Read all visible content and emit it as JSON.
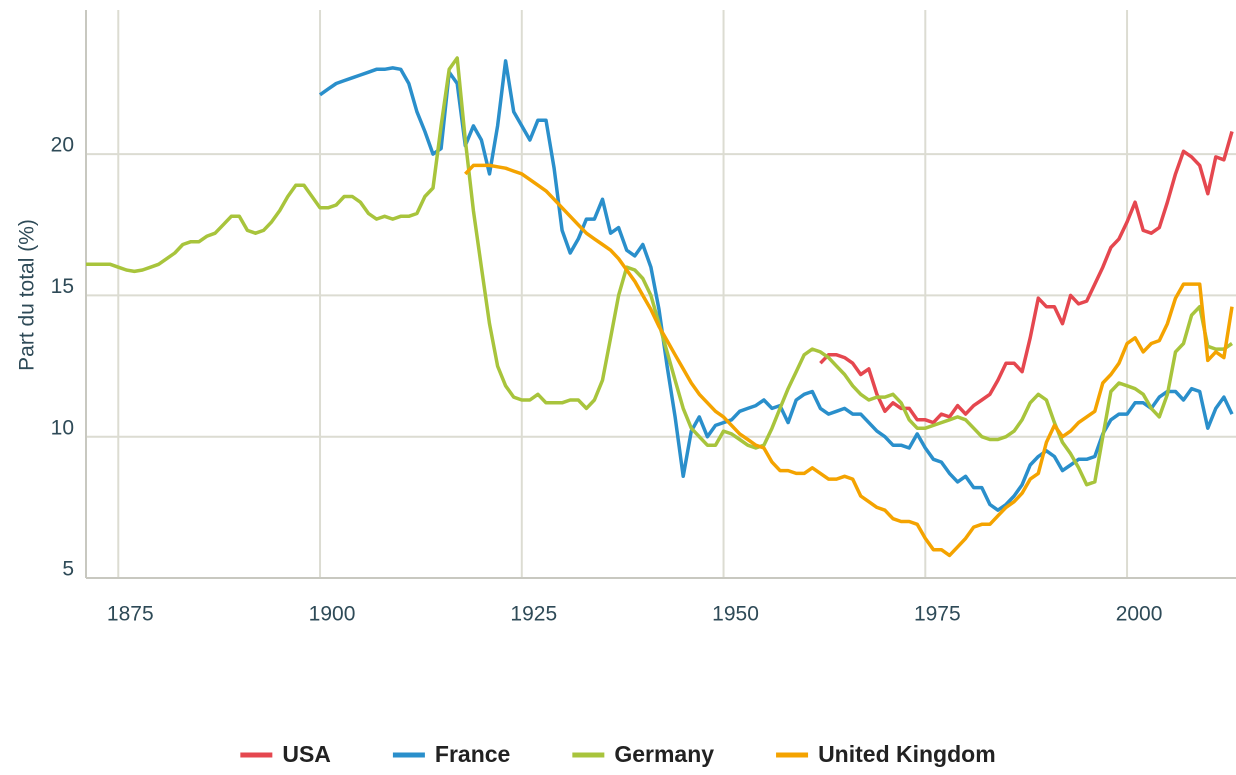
{
  "chart_data": {
    "type": "line",
    "y_label": "Part du total (%)",
    "xlim": [
      1871,
      2013.5
    ],
    "ylim": [
      5,
      25.1
    ],
    "xticks": [
      1875,
      1900,
      1925,
      1950,
      1975,
      2000
    ],
    "yticks": [
      5,
      10,
      15,
      20
    ],
    "grid": true,
    "legend": "bottom",
    "x": [
      1871,
      1872,
      1873,
      1874,
      1875,
      1876,
      1877,
      1878,
      1879,
      1880,
      1881,
      1882,
      1883,
      1884,
      1885,
      1886,
      1887,
      1888,
      1889,
      1890,
      1891,
      1892,
      1893,
      1894,
      1895,
      1896,
      1897,
      1898,
      1899,
      1900,
      1901,
      1902,
      1903,
      1904,
      1905,
      1906,
      1907,
      1908,
      1909,
      1910,
      1911,
      1912,
      1913,
      1914,
      1915,
      1916,
      1917,
      1918,
      1919,
      1920,
      1921,
      1922,
      1923,
      1924,
      1925,
      1926,
      1927,
      1928,
      1929,
      1930,
      1931,
      1932,
      1933,
      1934,
      1935,
      1936,
      1937,
      1938,
      1939,
      1940,
      1941,
      1942,
      1943,
      1944,
      1945,
      1946,
      1947,
      1948,
      1949,
      1950,
      1951,
      1952,
      1953,
      1954,
      1955,
      1956,
      1957,
      1958,
      1959,
      1960,
      1961,
      1962,
      1963,
      1964,
      1965,
      1966,
      1967,
      1968,
      1969,
      1970,
      1971,
      1972,
      1973,
      1974,
      1975,
      1976,
      1977,
      1978,
      1979,
      1980,
      1981,
      1982,
      1983,
      1984,
      1985,
      1986,
      1987,
      1988,
      1989,
      1990,
      1991,
      1992,
      1993,
      1994,
      1995,
      1996,
      1997,
      1998,
      1999,
      2000,
      2001,
      2002,
      2003,
      2004,
      2005,
      2006,
      2007,
      2008,
      2009,
      2010,
      2011,
      2012,
      2013
    ],
    "series": [
      {
        "name": "USA",
        "color": "#e5474f",
        "values": [
          null,
          null,
          null,
          null,
          null,
          null,
          null,
          null,
          null,
          null,
          null,
          null,
          null,
          null,
          null,
          null,
          null,
          null,
          null,
          null,
          null,
          null,
          null,
          null,
          null,
          null,
          null,
          null,
          null,
          null,
          null,
          null,
          null,
          null,
          null,
          null,
          null,
          null,
          null,
          null,
          null,
          null,
          null,
          null,
          null,
          null,
          null,
          null,
          null,
          null,
          null,
          null,
          null,
          null,
          null,
          null,
          null,
          null,
          null,
          null,
          null,
          null,
          null,
          null,
          null,
          null,
          null,
          null,
          null,
          null,
          null,
          null,
          null,
          null,
          null,
          null,
          null,
          null,
          null,
          null,
          null,
          null,
          null,
          null,
          null,
          null,
          null,
          null,
          null,
          null,
          null,
          12.6,
          12.9,
          12.9,
          12.8,
          12.6,
          12.2,
          12.4,
          11.5,
          10.9,
          11.2,
          11.0,
          11.0,
          10.6,
          10.6,
          10.5,
          10.8,
          10.7,
          11.1,
          10.8,
          11.1,
          11.3,
          11.5,
          12.0,
          12.6,
          12.6,
          12.3,
          13.5,
          14.9,
          14.6,
          14.6,
          14.0,
          15.0,
          14.7,
          14.8,
          15.4,
          16.0,
          16.7,
          17.0,
          17.6,
          18.3,
          17.3,
          17.2,
          17.4,
          18.3,
          19.3,
          20.1,
          19.9,
          19.6,
          18.6,
          19.9,
          19.8,
          20.8
        ]
      },
      {
        "name": "France",
        "color": "#2a8fcb",
        "values": [
          null,
          null,
          null,
          null,
          null,
          null,
          null,
          null,
          null,
          null,
          null,
          null,
          null,
          null,
          null,
          null,
          null,
          null,
          null,
          null,
          null,
          null,
          null,
          null,
          null,
          null,
          null,
          null,
          null,
          22.1,
          22.3,
          22.5,
          22.6,
          22.7,
          22.8,
          22.9,
          23.0,
          23.0,
          23.05,
          23.0,
          22.5,
          21.5,
          20.8,
          20.0,
          20.2,
          22.9,
          22.5,
          20.3,
          21.0,
          20.5,
          19.3,
          21.0,
          23.3,
          21.5,
          21.0,
          20.5,
          21.2,
          21.2,
          19.5,
          17.3,
          16.5,
          17.0,
          17.7,
          17.7,
          18.4,
          17.2,
          17.4,
          16.6,
          16.4,
          16.8,
          16.0,
          14.5,
          12.5,
          10.7,
          8.6,
          10.2,
          10.7,
          10.0,
          10.4,
          10.5,
          10.6,
          10.9,
          11.0,
          11.1,
          11.3,
          11.0,
          11.1,
          10.5,
          11.3,
          11.5,
          11.6,
          11.0,
          10.8,
          10.9,
          11.0,
          10.8,
          10.8,
          10.5,
          10.2,
          10.0,
          9.7,
          9.7,
          9.6,
          10.1,
          9.6,
          9.2,
          9.1,
          8.7,
          8.4,
          8.6,
          8.2,
          8.2,
          7.6,
          7.4,
          7.6,
          7.9,
          8.3,
          9.0,
          9.3,
          9.5,
          9.3,
          8.8,
          9.0,
          9.2,
          9.2,
          9.3,
          10.1,
          10.6,
          10.8,
          10.8,
          11.2,
          11.2,
          11.0,
          11.4,
          11.6,
          11.6,
          11.3,
          11.7,
          11.6,
          10.3,
          11.0,
          11.4,
          10.8
        ]
      },
      {
        "name": "Germany",
        "color": "#a8c43c",
        "values": [
          16.1,
          16.1,
          16.1,
          16.1,
          16.0,
          15.9,
          15.85,
          15.9,
          16.0,
          16.1,
          16.3,
          16.5,
          16.8,
          16.9,
          16.9,
          17.1,
          17.2,
          17.5,
          17.8,
          17.8,
          17.3,
          17.2,
          17.3,
          17.6,
          18.0,
          18.5,
          18.9,
          18.9,
          18.5,
          18.1,
          18.1,
          18.2,
          18.5,
          18.5,
          18.3,
          17.9,
          17.7,
          17.8,
          17.7,
          17.8,
          17.8,
          17.9,
          18.5,
          18.8,
          21.0,
          23.0,
          23.4,
          20.5,
          18.0,
          16.0,
          14.0,
          12.5,
          11.8,
          11.4,
          11.3,
          11.3,
          11.5,
          11.2,
          11.2,
          11.2,
          11.3,
          11.3,
          11.0,
          11.3,
          12.0,
          13.5,
          15.0,
          16.0,
          15.9,
          15.6,
          15.0,
          14.0,
          13.0,
          12.0,
          11.0,
          10.3,
          10.0,
          9.7,
          9.7,
          10.2,
          10.1,
          9.9,
          9.7,
          9.6,
          9.7,
          10.3,
          11.0,
          11.7,
          12.3,
          12.9,
          13.1,
          13.0,
          12.8,
          12.5,
          12.2,
          11.8,
          11.5,
          11.3,
          11.4,
          11.4,
          11.5,
          11.2,
          10.6,
          10.3,
          10.3,
          10.4,
          10.5,
          10.6,
          10.7,
          10.6,
          10.3,
          10.0,
          9.9,
          9.9,
          10.0,
          10.2,
          10.6,
          11.2,
          11.5,
          11.3,
          10.5,
          9.8,
          9.4,
          8.9,
          8.3,
          8.4,
          10.0,
          11.6,
          11.9,
          11.8,
          11.7,
          11.5,
          11.0,
          10.7,
          11.5,
          13.0,
          13.3,
          14.3,
          14.6,
          13.2,
          13.1,
          13.1,
          13.3
        ]
      },
      {
        "name": "United Kingdom",
        "color": "#f4a300",
        "values": [
          null,
          null,
          null,
          null,
          null,
          null,
          null,
          null,
          null,
          null,
          null,
          null,
          null,
          null,
          null,
          null,
          null,
          null,
          null,
          null,
          null,
          null,
          null,
          null,
          null,
          null,
          null,
          null,
          null,
          null,
          null,
          null,
          null,
          null,
          null,
          null,
          null,
          null,
          null,
          null,
          null,
          null,
          null,
          null,
          null,
          null,
          null,
          19.3,
          19.6,
          19.6,
          19.6,
          19.55,
          19.5,
          19.4,
          19.3,
          19.1,
          18.9,
          18.7,
          18.4,
          18.1,
          17.8,
          17.5,
          17.2,
          17.0,
          16.8,
          16.6,
          16.3,
          15.9,
          15.5,
          15.0,
          14.5,
          13.9,
          13.4,
          12.9,
          12.4,
          11.9,
          11.5,
          11.2,
          10.9,
          10.7,
          10.4,
          10.1,
          9.9,
          9.7,
          9.6,
          9.1,
          8.8,
          8.8,
          8.7,
          8.7,
          8.9,
          8.7,
          8.5,
          8.5,
          8.6,
          8.5,
          7.9,
          7.7,
          7.5,
          7.4,
          7.1,
          7.0,
          7.0,
          6.9,
          6.4,
          6.0,
          6.0,
          5.8,
          6.1,
          6.4,
          6.8,
          6.9,
          6.9,
          7.2,
          7.5,
          7.7,
          8.0,
          8.5,
          8.7,
          9.8,
          10.4,
          10.0,
          10.2,
          10.5,
          10.7,
          10.9,
          11.9,
          12.2,
          12.6,
          13.3,
          13.5,
          13.0,
          13.3,
          13.4,
          14.0,
          14.9,
          15.4,
          15.4,
          15.4,
          12.7,
          13.0,
          12.8,
          14.6
        ]
      }
    ]
  }
}
